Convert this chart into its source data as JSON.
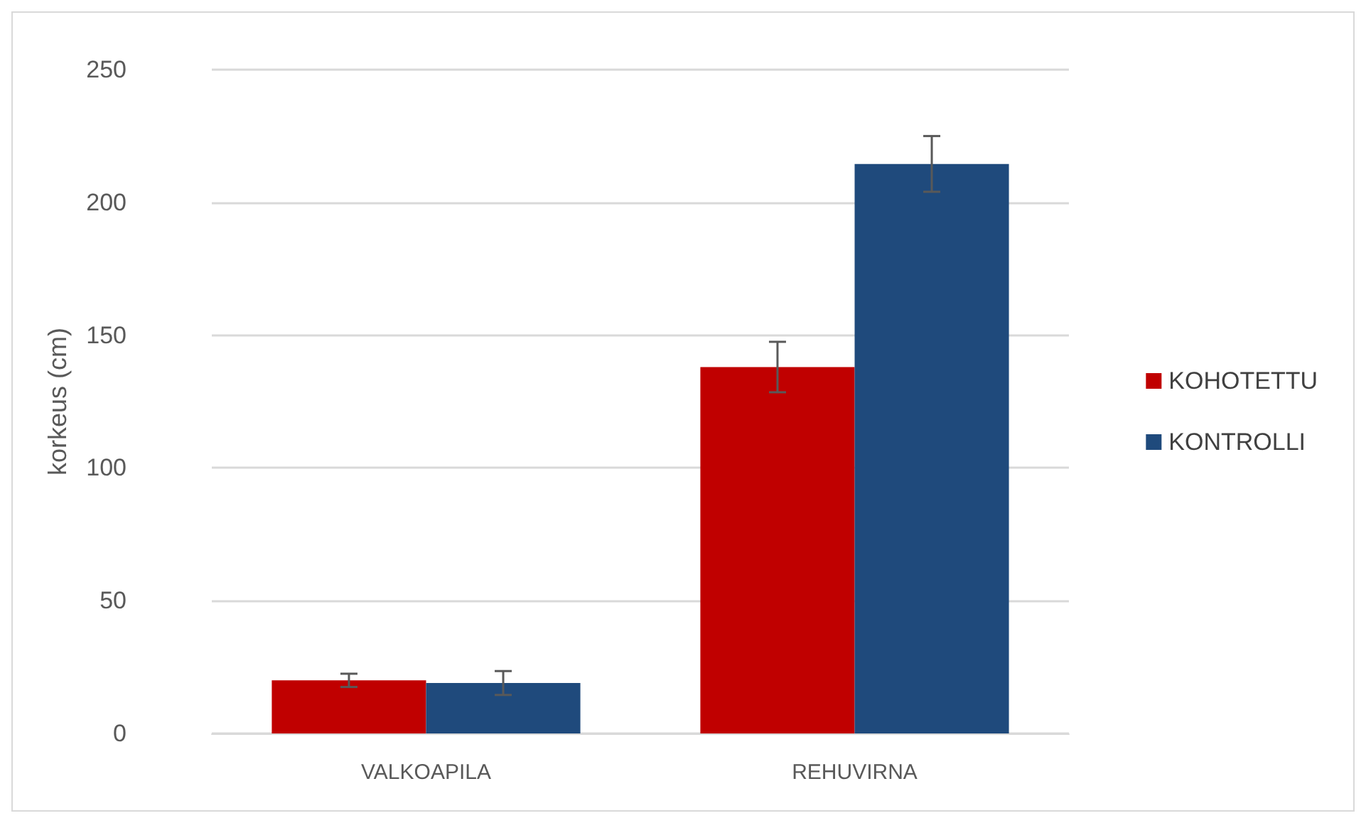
{
  "chart_data": {
    "type": "bar",
    "ylabel": "korkeus (cm)",
    "categories": [
      "VALKOAPILA",
      "REHUVIRNA"
    ],
    "series": [
      {
        "name": "KOHOTETTU",
        "color": "#c00000",
        "values": [
          20,
          138
        ],
        "errors": [
          2.5,
          9.5
        ]
      },
      {
        "name": "KONTROLLI",
        "color": "#1f4a7c",
        "values": [
          19,
          214.5
        ],
        "errors": [
          4.5,
          10.5
        ]
      }
    ],
    "ylim": [
      0,
      250
    ],
    "yticks": [
      0,
      50,
      100,
      150,
      200,
      250
    ],
    "grid": "y",
    "legend": "right"
  }
}
